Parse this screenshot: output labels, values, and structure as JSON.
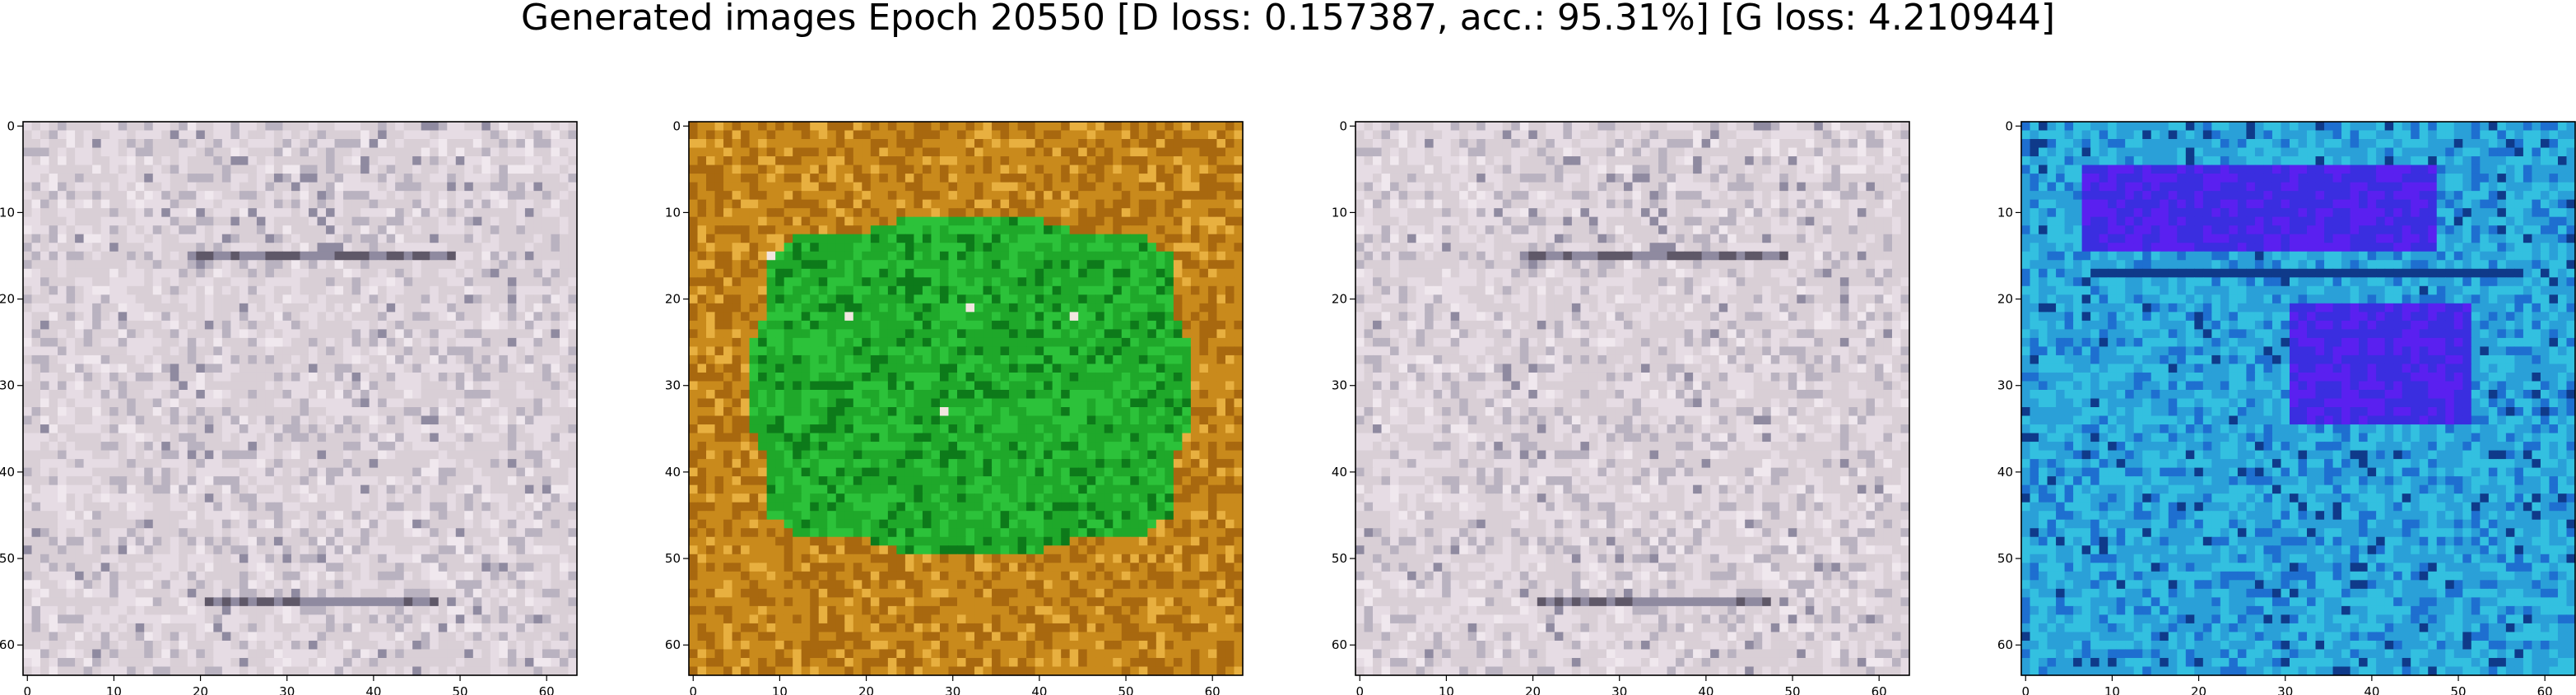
{
  "figure": {
    "title": "Generated images Epoch 20550 [D loss: 0.157387, acc.: 95.31%] [G loss: 4.210944]"
  },
  "chart_data": [
    {
      "type": "heatmap",
      "image": "grayish-pink noise texture",
      "palette": [
        "#d9cfd6",
        "#e6dce4",
        "#b9b2c0",
        "#8f8aa0",
        "#f0e8ee",
        "#5f5868"
      ],
      "xlim": [
        0,
        63
      ],
      "ylim": [
        63,
        0
      ],
      "xticks": [
        0,
        10,
        20,
        30,
        40,
        50,
        60
      ],
      "yticks": [
        0,
        10,
        20,
        30,
        40,
        50,
        60
      ],
      "grid": false
    },
    {
      "type": "heatmap",
      "image": "green blob on orange background",
      "palette": [
        "#1fa82a",
        "#2cc23a",
        "#0d7a1a",
        "#c98a1c",
        "#a8680f",
        "#e8b040"
      ],
      "xlim": [
        0,
        63
      ],
      "ylim": [
        63,
        0
      ],
      "xticks": [
        0,
        10,
        20,
        30,
        40,
        50,
        60
      ],
      "yticks": [
        0,
        10,
        20,
        30,
        40,
        50,
        60
      ],
      "grid": false
    },
    {
      "type": "heatmap",
      "image": "grayish-pink noise texture",
      "palette": [
        "#d9cfd6",
        "#e6dce4",
        "#b9b2c0",
        "#8f8aa0",
        "#f0e8ee",
        "#5f5868"
      ],
      "xlim": [
        0,
        63
      ],
      "ylim": [
        63,
        0
      ],
      "xticks": [
        0,
        10,
        20,
        30,
        40,
        50,
        60
      ],
      "yticks": [
        0,
        10,
        20,
        30,
        40,
        50,
        60
      ],
      "grid": false
    },
    {
      "type": "heatmap",
      "image": "cyan and blue texture with violet patch",
      "palette": [
        "#2aa0d8",
        "#33c0e0",
        "#1e6fd0",
        "#3a2ee0",
        "#5a20f0",
        "#0f3a8a"
      ],
      "xlim": [
        0,
        63
      ],
      "ylim": [
        63,
        0
      ],
      "xticks": [
        0,
        10,
        20,
        30,
        40,
        50,
        60
      ],
      "yticks": [
        0,
        10,
        20,
        30,
        40,
        50,
        60
      ],
      "grid": false
    }
  ]
}
